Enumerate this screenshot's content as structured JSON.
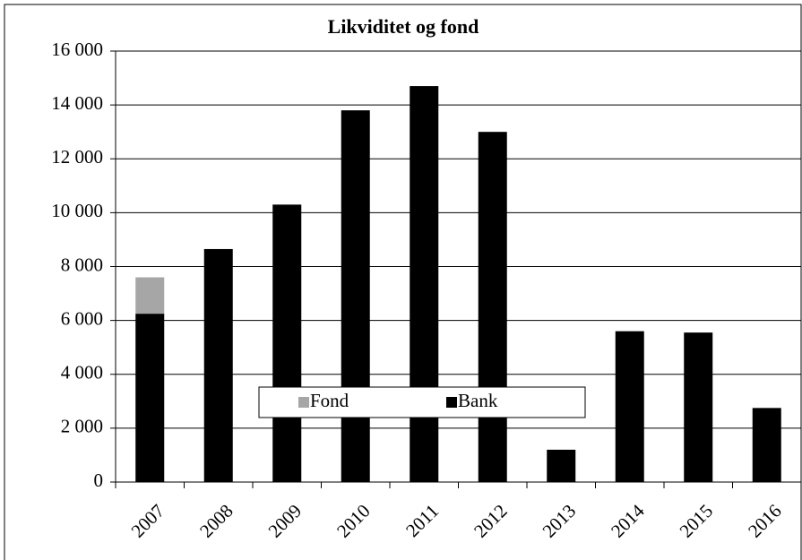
{
  "chart_data": {
    "type": "bar",
    "stacked": true,
    "title": "Likviditet  og fond",
    "categories": [
      "2007",
      "2008",
      "2009",
      "2010",
      "2011",
      "2012",
      "2013",
      "2014",
      "2015",
      "2016"
    ],
    "series": [
      {
        "name": "Bank",
        "color": "#000000",
        "values": [
          6250,
          8650,
          10300,
          13800,
          14700,
          13000,
          1200,
          5600,
          5550,
          2750
        ]
      },
      {
        "name": "Fond",
        "color": "#a6a6a6",
        "values": [
          1350,
          0,
          0,
          0,
          0,
          0,
          0,
          0,
          0,
          0
        ]
      }
    ],
    "ylim": [
      0,
      16000
    ],
    "yticks": [
      0,
      {
        "value": 2000,
        "label": "2 000"
      },
      {
        "value": 4000,
        "label": "4 000"
      },
      {
        "value": 6000,
        "label": "6 000"
      },
      {
        "value": 8000,
        "label": "8 000"
      },
      {
        "value": 10000,
        "label": "10 000"
      },
      {
        "value": 12000,
        "label": "12 000"
      },
      {
        "value": 14000,
        "label": "14 000"
      },
      {
        "value": 16000,
        "label": "16 000"
      }
    ],
    "grid": true,
    "legend": "bottom-center"
  }
}
